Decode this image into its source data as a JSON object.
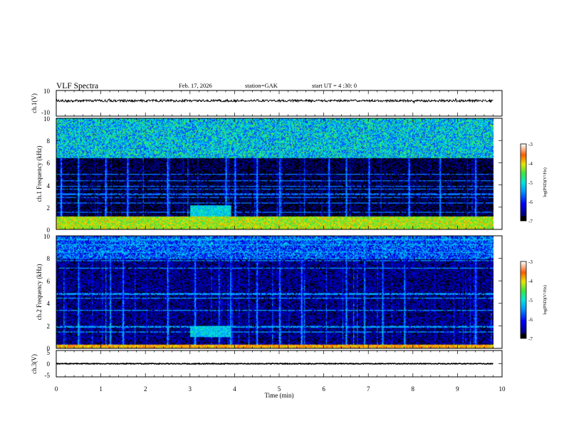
{
  "header": {
    "title": "VLF Spectra",
    "date": "Feb. 17, 2026",
    "station": "station=GAK",
    "start_ut": "start UT = 4 :30: 0"
  },
  "chart_data": {
    "type": "heatmap",
    "xlabel": "Time (min)",
    "xlim": [
      0,
      10
    ],
    "x_ticks": [
      "0",
      "1",
      "2",
      "3",
      "4",
      "5",
      "6",
      "7",
      "8",
      "9",
      "10"
    ],
    "panels": [
      {
        "id": "ch1-waveform",
        "type": "line",
        "ylabel": "ch.1(V)",
        "ylim": [
          -10,
          10
        ],
        "y_ticks": [
          "10",
          "-10"
        ],
        "x_end": 9.8,
        "level": 2,
        "amplitude": 0.9
      },
      {
        "id": "ch1-spectrogram",
        "type": "heatmap",
        "ylabel": "ch.1 Frequency (kHz)",
        "ylim": [
          0,
          10
        ],
        "y_ticks": [
          "10",
          "8",
          "6",
          "4",
          "2",
          "0"
        ],
        "x_end": 9.8,
        "colorbar": {
          "label": "log(PSD)(V²/Hz)",
          "ticks": [
            "-3",
            "-4",
            "-5",
            "-6",
            "-7"
          ],
          "range": [
            -7,
            -3
          ]
        },
        "features": {
          "background_level": -6.8,
          "dense_band_khz": [
            6.5,
            10
          ],
          "dense_band_level": -5.2,
          "low_freq_band_khz": [
            0,
            1.2
          ],
          "low_freq_band_level": -4.2,
          "enhanced_region": {
            "t": [
              3.0,
              3.9
            ],
            "f_khz": [
              1.0,
              2.2
            ],
            "level": -5.1
          },
          "burst_times_min": [
            0.1,
            0.5,
            1.1,
            1.6,
            2.5,
            3.8,
            4.0,
            4.5,
            5.0,
            6.1,
            6.5,
            7.0,
            7.9,
            8.6,
            9.4
          ]
        }
      },
      {
        "id": "ch2-spectrogram",
        "type": "heatmap",
        "ylabel": "ch.2 Frequency (kHz)",
        "ylim": [
          0,
          10
        ],
        "y_ticks": [
          "10",
          "8",
          "6",
          "4",
          "2",
          "0"
        ],
        "x_end": 9.8,
        "colorbar": {
          "label": "log(PSD)(V²/Hz)",
          "ticks": [
            "-3",
            "-4",
            "-5",
            "-6",
            "-7"
          ],
          "range": [
            -7,
            -3
          ]
        },
        "features": {
          "background_level": -6.6,
          "dense_band_khz": [
            8.0,
            10
          ],
          "dense_band_level": -5.8,
          "low_freq_band_khz": [
            0,
            0.4
          ],
          "low_freq_band_level": -3.8,
          "enhanced_region": {
            "t": [
              3.0,
              3.9
            ],
            "f_khz": [
              1.0,
              2.0
            ],
            "level": -5.2
          },
          "burst_times_min": [
            0.5,
            1.2,
            1.5,
            2.5,
            3.1,
            3.9,
            4.5,
            5.0,
            5.5,
            6.5,
            6.9,
            7.3,
            7.8,
            9.4
          ]
        }
      },
      {
        "id": "ch3-waveform",
        "type": "line",
        "ylabel": "ch.3(V)",
        "ylim": [
          -5,
          5
        ],
        "y_ticks": [
          "5",
          "0",
          "-5"
        ],
        "x_end": 9.8,
        "level": 0,
        "amplitude": 0.15
      }
    ]
  }
}
